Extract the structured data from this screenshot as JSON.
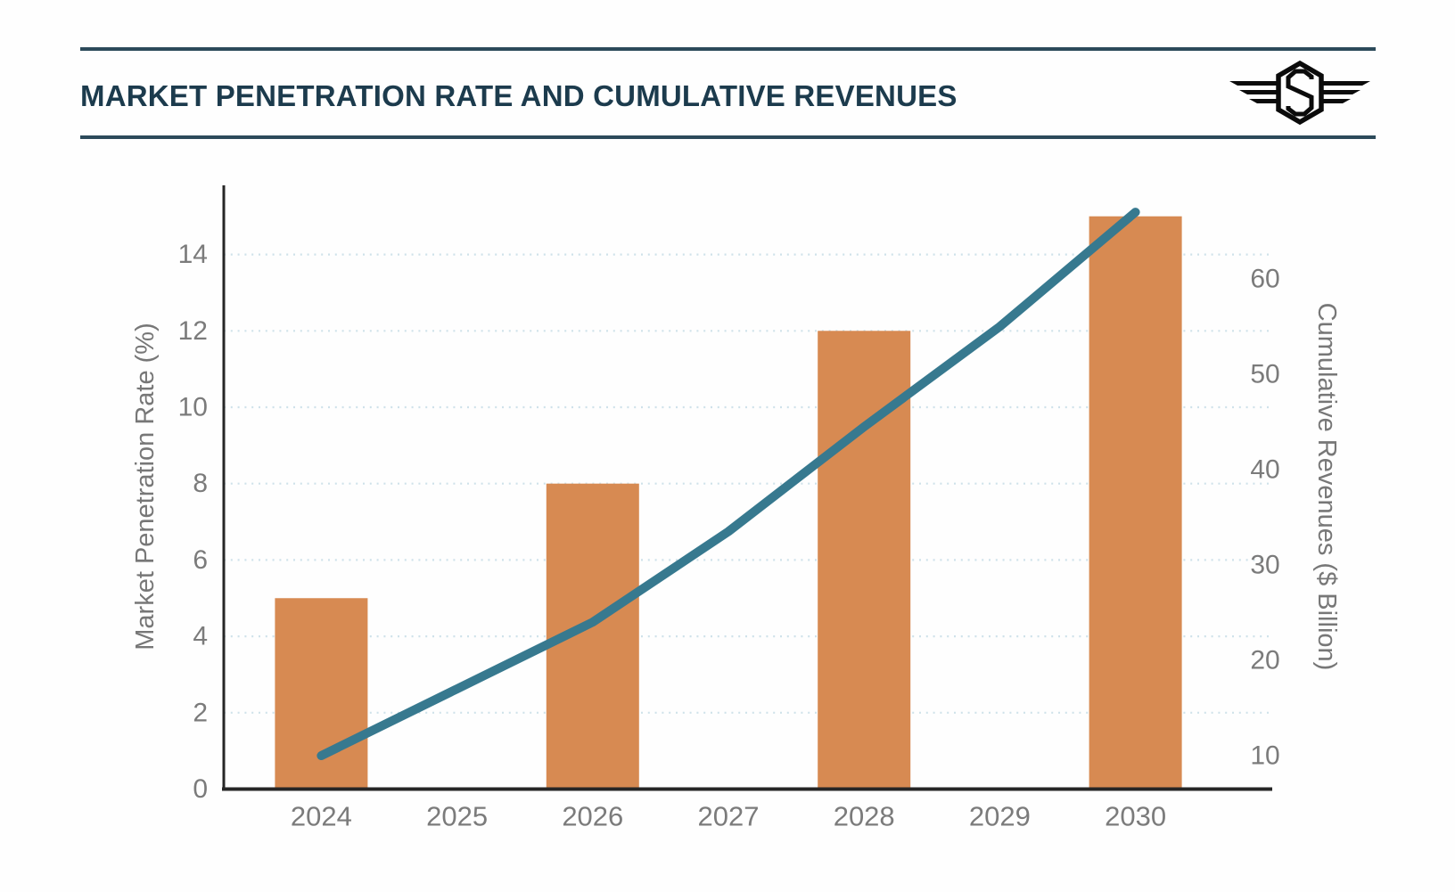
{
  "header": {
    "title": "MARKET PENETRATION RATE AND CUMULATIVE REVENUES",
    "logo_icon": "winged-s-hexagon-emblem"
  },
  "chart_data": {
    "type": "combo-bar-line",
    "title": "MARKET PENETRATION RATE AND CUMULATIVE REVENUES",
    "categories": [
      "2024",
      "2025",
      "2026",
      "2027",
      "2028",
      "2029",
      "2030"
    ],
    "series": [
      {
        "name": "Market Penetration Rate (%)",
        "type": "bar",
        "axis": "left",
        "values": [
          5,
          null,
          8,
          null,
          12,
          null,
          15
        ]
      },
      {
        "name": "Cumulative Revenues ($ Billion)",
        "type": "line",
        "axis": "right",
        "values": [
          10,
          17,
          24,
          33.5,
          44.5,
          55,
          67
        ]
      }
    ],
    "left_axis": {
      "label": "Market Penetration Rate (%)",
      "ticks": [
        0,
        2,
        4,
        6,
        8,
        10,
        12,
        14
      ],
      "range": [
        0,
        15.8
      ]
    },
    "right_axis": {
      "label": "Cumulative Revenues ($ Billion)",
      "ticks": [
        10,
        20,
        30,
        40,
        50,
        60
      ],
      "range": [
        6.5,
        69.8
      ]
    },
    "grid": "horizontal-dotted",
    "legend_position": "none",
    "colors": {
      "bar": "#D78A52",
      "line": "#37798F",
      "grid": "#CFE2EA",
      "axis_line": "#262626",
      "tick_text": "#7B7B7B",
      "axis_title_text": "#777777",
      "header_title": "#1C3B4D",
      "header_rule": "#2C4A5A",
      "logo": "#0B0B0B"
    }
  }
}
